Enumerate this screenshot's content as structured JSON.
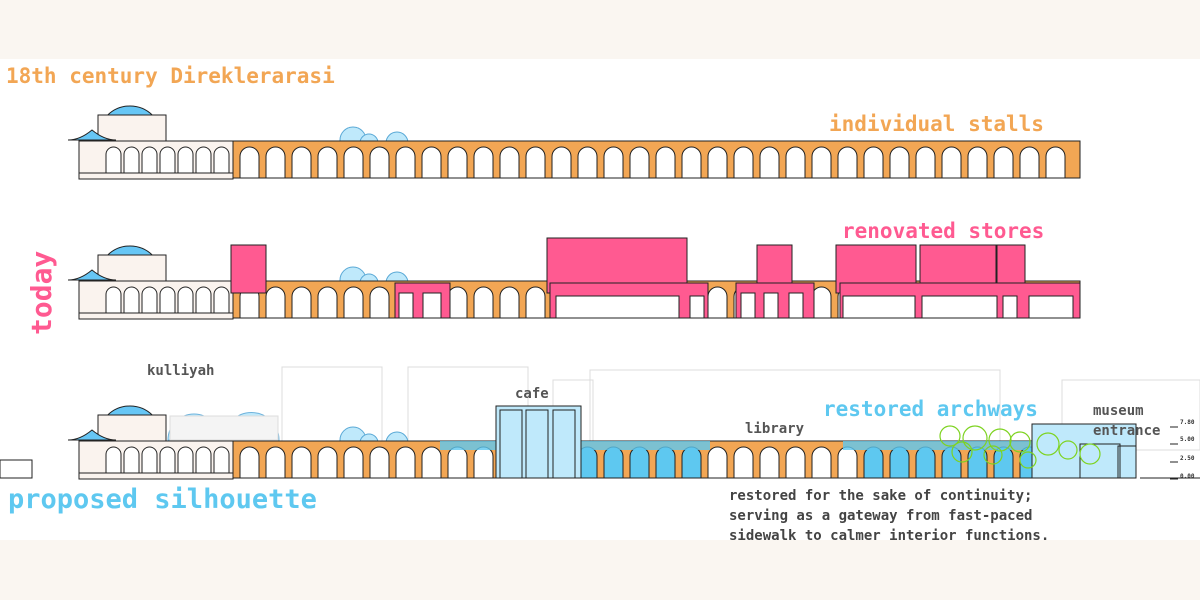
{
  "labels": {
    "historic": "18th century Direklerarasi",
    "stalls": "individual stalls",
    "stores": "renovated stores",
    "today": "today",
    "kulliyah": "kulliyah",
    "cafe": "cafe",
    "restored_archways": "restored archways",
    "library": "library",
    "museum_line1": "museum",
    "museum_line2": "entrance",
    "proposed": "proposed silhouette",
    "note_line1": "restored for the sake of continuity;",
    "note_line2": "serving as a gateway from fast-paced",
    "note_line3": "sidewalk to calmer interior functions."
  },
  "levels": [
    "7.80",
    "5.00",
    "2.50",
    "0.00"
  ],
  "colors": {
    "page_bg": "#faf6f1",
    "canvas_bg": "#ffffff",
    "orange": "#f2a654",
    "pink": "#ff5a91",
    "blue": "#5ec8f0",
    "light_blue": "#bfe9fb",
    "dome_blue": "#66c6f5",
    "green": "#7ed321",
    "ink": "#222222"
  },
  "icons": [
    "dome-icon",
    "tree-icon"
  ]
}
